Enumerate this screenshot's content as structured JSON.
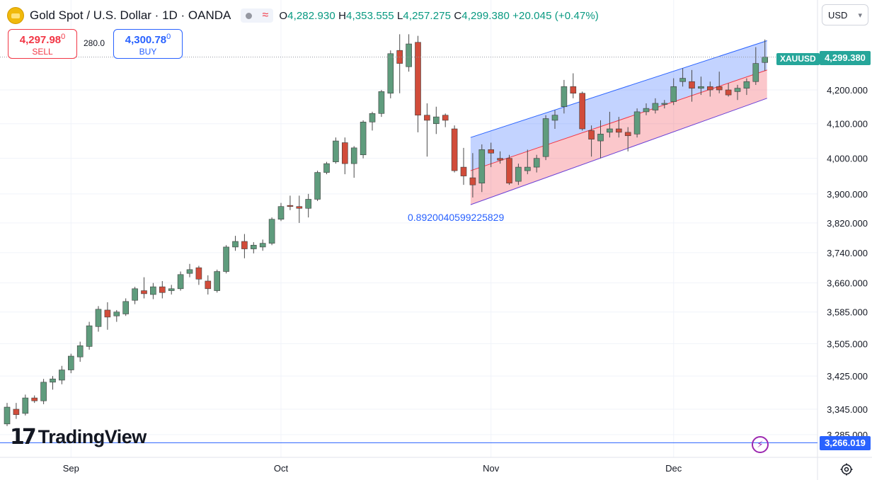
{
  "header": {
    "symbol_title": "Gold Spot / U.S. Dollar · 1D · OANDA",
    "ohlc": {
      "o_label": "O",
      "o": "4,282.930",
      "h_label": "H",
      "h": "4,353.555",
      "l_label": "L",
      "l": "4,257.275",
      "c_label": "C",
      "c": "4,299.380",
      "change": "+20.045 (+0.47%)"
    }
  },
  "trade": {
    "sell_price": "4,297.98",
    "sell_sup": "0",
    "sell_label": "SELL",
    "spread": "280.0",
    "buy_price": "4,300.78",
    "buy_sup": "0",
    "buy_label": "BUY"
  },
  "currency": {
    "label": "USD",
    "icon": "chevron-down-icon"
  },
  "logo": {
    "mark": "17",
    "word": "TradingView"
  },
  "annotation": {
    "text": "0.8920040599225829"
  },
  "tags": {
    "symbol": "XAUUSD",
    "last_price": "4,299.380",
    "line_price": "3,266.019"
  },
  "colors": {
    "up": "#5f9c7d",
    "down": "#d14c3a",
    "channel_blue": "#2962ff",
    "last": "#26a69a"
  },
  "chart_data": {
    "type": "candlestick",
    "title": "Gold Spot / U.S. Dollar · 1D · OANDA",
    "x_ticks": [
      {
        "label": "Sep",
        "index": 7
      },
      {
        "label": "Oct",
        "index": 30
      },
      {
        "label": "Nov",
        "index": 53
      },
      {
        "label": "Dec",
        "index": 73
      }
    ],
    "y_ticks": [
      "4,200.000",
      "4,100.000",
      "4,000.000",
      "3,900.000",
      "3,820.000",
      "3,740.000",
      "3,660.000",
      "3,585.000",
      "3,505.000",
      "3,425.000",
      "3,345.000",
      "3,285.000"
    ],
    "y_scale": "log",
    "ylim": [
      3240,
      4400
    ],
    "horizontal_line": 3266.019,
    "last_price": 4299.38,
    "candles": [
      {
        "o": 3310,
        "h": 3360,
        "l": 3305,
        "c": 3350
      },
      {
        "o": 3345,
        "h": 3360,
        "l": 3322,
        "c": 3332
      },
      {
        "o": 3335,
        "h": 3380,
        "l": 3330,
        "c": 3372
      },
      {
        "o": 3372,
        "h": 3378,
        "l": 3360,
        "c": 3365
      },
      {
        "o": 3365,
        "h": 3418,
        "l": 3357,
        "c": 3410
      },
      {
        "o": 3410,
        "h": 3425,
        "l": 3392,
        "c": 3418
      },
      {
        "o": 3415,
        "h": 3450,
        "l": 3405,
        "c": 3440
      },
      {
        "o": 3440,
        "h": 3480,
        "l": 3432,
        "c": 3474
      },
      {
        "o": 3472,
        "h": 3510,
        "l": 3460,
        "c": 3500
      },
      {
        "o": 3498,
        "h": 3560,
        "l": 3490,
        "c": 3550
      },
      {
        "o": 3548,
        "h": 3600,
        "l": 3535,
        "c": 3592
      },
      {
        "o": 3590,
        "h": 3610,
        "l": 3540,
        "c": 3572
      },
      {
        "o": 3575,
        "h": 3590,
        "l": 3560,
        "c": 3585
      },
      {
        "o": 3580,
        "h": 3620,
        "l": 3575,
        "c": 3612
      },
      {
        "o": 3615,
        "h": 3650,
        "l": 3605,
        "c": 3645
      },
      {
        "o": 3640,
        "h": 3675,
        "l": 3620,
        "c": 3632
      },
      {
        "o": 3630,
        "h": 3660,
        "l": 3618,
        "c": 3650
      },
      {
        "o": 3650,
        "h": 3665,
        "l": 3620,
        "c": 3635
      },
      {
        "o": 3640,
        "h": 3655,
        "l": 3630,
        "c": 3645
      },
      {
        "o": 3645,
        "h": 3690,
        "l": 3640,
        "c": 3682
      },
      {
        "o": 3685,
        "h": 3710,
        "l": 3675,
        "c": 3695
      },
      {
        "o": 3700,
        "h": 3705,
        "l": 3655,
        "c": 3670
      },
      {
        "o": 3665,
        "h": 3680,
        "l": 3630,
        "c": 3645
      },
      {
        "o": 3640,
        "h": 3695,
        "l": 3635,
        "c": 3690
      },
      {
        "o": 3690,
        "h": 3760,
        "l": 3685,
        "c": 3755
      },
      {
        "o": 3755,
        "h": 3785,
        "l": 3745,
        "c": 3770
      },
      {
        "o": 3770,
        "h": 3790,
        "l": 3725,
        "c": 3750
      },
      {
        "o": 3750,
        "h": 3768,
        "l": 3738,
        "c": 3760
      },
      {
        "o": 3755,
        "h": 3775,
        "l": 3745,
        "c": 3765
      },
      {
        "o": 3765,
        "h": 3835,
        "l": 3760,
        "c": 3830
      },
      {
        "o": 3830,
        "h": 3875,
        "l": 3825,
        "c": 3865
      },
      {
        "o": 3868,
        "h": 3895,
        "l": 3855,
        "c": 3865
      },
      {
        "o": 3865,
        "h": 3895,
        "l": 3820,
        "c": 3860
      },
      {
        "o": 3860,
        "h": 3900,
        "l": 3835,
        "c": 3885
      },
      {
        "o": 3885,
        "h": 3965,
        "l": 3880,
        "c": 3960
      },
      {
        "o": 3960,
        "h": 3990,
        "l": 3955,
        "c": 3985
      },
      {
        "o": 3990,
        "h": 4060,
        "l": 3985,
        "c": 4050
      },
      {
        "o": 4045,
        "h": 4060,
        "l": 3955,
        "c": 3985
      },
      {
        "o": 3985,
        "h": 4035,
        "l": 3945,
        "c": 4030
      },
      {
        "o": 4010,
        "h": 4110,
        "l": 4000,
        "c": 4105
      },
      {
        "o": 4105,
        "h": 4135,
        "l": 4080,
        "c": 4130
      },
      {
        "o": 4130,
        "h": 4200,
        "l": 4120,
        "c": 4195
      },
      {
        "o": 4190,
        "h": 4320,
        "l": 4175,
        "c": 4310
      },
      {
        "o": 4320,
        "h": 4370,
        "l": 4190,
        "c": 4280
      },
      {
        "o": 4270,
        "h": 4370,
        "l": 4255,
        "c": 4340
      },
      {
        "o": 4345,
        "h": 4365,
        "l": 4075,
        "c": 4125
      },
      {
        "o": 4125,
        "h": 4160,
        "l": 4005,
        "c": 4110
      },
      {
        "o": 4100,
        "h": 4150,
        "l": 4070,
        "c": 4120
      },
      {
        "o": 4125,
        "h": 4130,
        "l": 4090,
        "c": 4110
      },
      {
        "o": 4085,
        "h": 4095,
        "l": 3960,
        "c": 3965
      },
      {
        "o": 3975,
        "h": 4030,
        "l": 3925,
        "c": 3950
      },
      {
        "o": 3945,
        "h": 4015,
        "l": 3890,
        "c": 3925
      },
      {
        "o": 3930,
        "h": 4040,
        "l": 3905,
        "c": 4025
      },
      {
        "o": 4025,
        "h": 4045,
        "l": 3975,
        "c": 4015
      },
      {
        "o": 4000,
        "h": 4020,
        "l": 3985,
        "c": 3995
      },
      {
        "o": 4000,
        "h": 4010,
        "l": 3925,
        "c": 3930
      },
      {
        "o": 3935,
        "h": 3985,
        "l": 3925,
        "c": 3975
      },
      {
        "o": 3965,
        "h": 4025,
        "l": 3955,
        "c": 3975
      },
      {
        "o": 3975,
        "h": 4010,
        "l": 3960,
        "c": 4000
      },
      {
        "o": 4005,
        "h": 4125,
        "l": 3995,
        "c": 4115
      },
      {
        "o": 4110,
        "h": 4140,
        "l": 4085,
        "c": 4125
      },
      {
        "o": 4150,
        "h": 4230,
        "l": 4130,
        "c": 4210
      },
      {
        "o": 4210,
        "h": 4250,
        "l": 4175,
        "c": 4190
      },
      {
        "o": 4190,
        "h": 4195,
        "l": 4080,
        "c": 4085
      },
      {
        "o": 4080,
        "h": 4095,
        "l": 4005,
        "c": 4055
      },
      {
        "o": 4050,
        "h": 4110,
        "l": 4000,
        "c": 4070
      },
      {
        "o": 4075,
        "h": 4135,
        "l": 4060,
        "c": 4085
      },
      {
        "o": 4085,
        "h": 4120,
        "l": 4060,
        "c": 4075
      },
      {
        "o": 4075,
        "h": 4090,
        "l": 4020,
        "c": 4065
      },
      {
        "o": 4070,
        "h": 4145,
        "l": 4060,
        "c": 4135
      },
      {
        "o": 4135,
        "h": 4160,
        "l": 4125,
        "c": 4145
      },
      {
        "o": 4140,
        "h": 4175,
        "l": 4130,
        "c": 4160
      },
      {
        "o": 4160,
        "h": 4170,
        "l": 4145,
        "c": 4160
      },
      {
        "o": 4165,
        "h": 4235,
        "l": 4155,
        "c": 4210
      },
      {
        "o": 4225,
        "h": 4265,
        "l": 4210,
        "c": 4235
      },
      {
        "o": 4225,
        "h": 4260,
        "l": 4165,
        "c": 4205
      },
      {
        "o": 4205,
        "h": 4240,
        "l": 4185,
        "c": 4210
      },
      {
        "o": 4210,
        "h": 4225,
        "l": 4180,
        "c": 4200
      },
      {
        "o": 4210,
        "h": 4255,
        "l": 4190,
        "c": 4200
      },
      {
        "o": 4200,
        "h": 4220,
        "l": 4180,
        "c": 4185
      },
      {
        "o": 4195,
        "h": 4215,
        "l": 4170,
        "c": 4205
      },
      {
        "o": 4205,
        "h": 4235,
        "l": 4185,
        "c": 4225
      },
      {
        "o": 4225,
        "h": 4330,
        "l": 4215,
        "c": 4280
      },
      {
        "o": 4282.93,
        "h": 4353.555,
        "l": 4257.275,
        "c": 4299.38
      }
    ],
    "regression_channel": {
      "start_index": 51,
      "end_index": 83,
      "upper_start": 4060,
      "upper_end": 4350,
      "mid_start": 3965,
      "mid_end": 4260,
      "lower_start": 3870,
      "lower_end": 4175,
      "label": "0.8920040599225829"
    }
  }
}
